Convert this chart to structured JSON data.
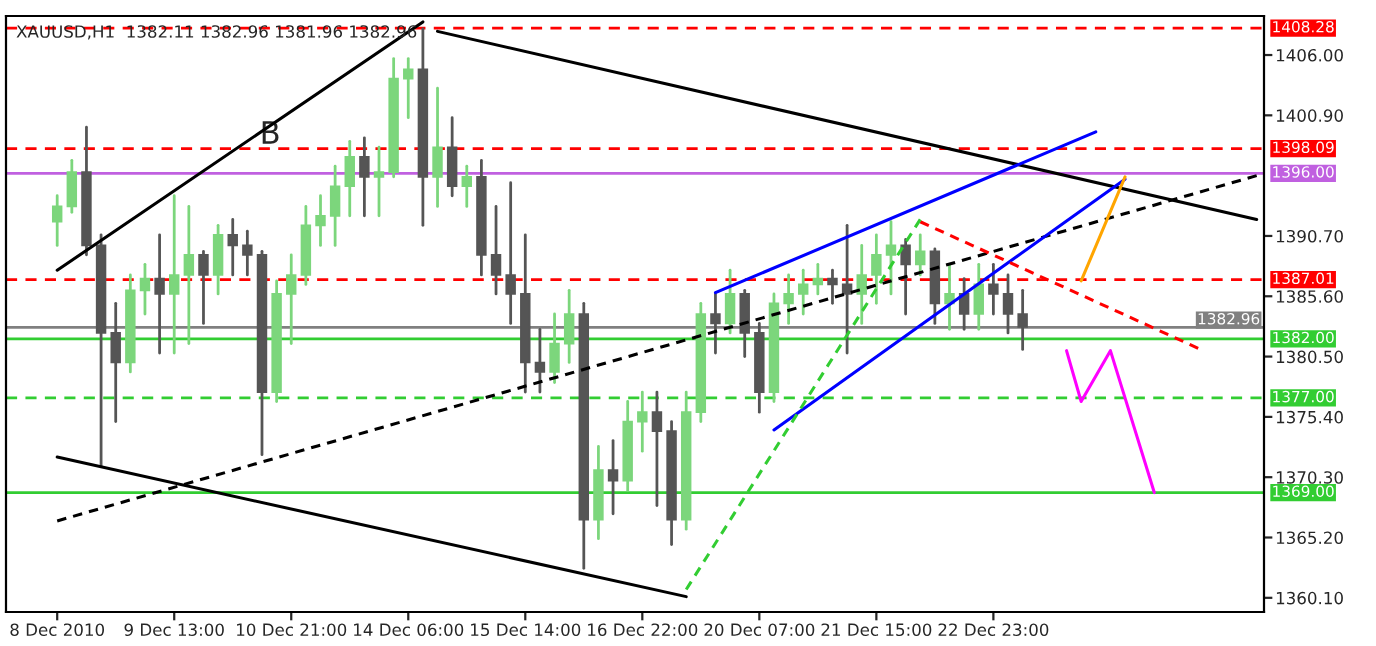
{
  "chart_data": {
    "type": "candlestick",
    "title": "XAUUSD,H1  1382.11 1382.96 1381.96 1382.96",
    "annotations": [
      "B"
    ],
    "categories": [
      "8 Dec 2010",
      null,
      null,
      null,
      null,
      null,
      null,
      null,
      "9 Dec 13:00",
      null,
      null,
      null,
      null,
      null,
      null,
      null,
      "10 Dec 21:00",
      null,
      null,
      null,
      null,
      null,
      null,
      null,
      "14 Dec 06:00",
      null,
      null,
      null,
      null,
      null,
      null,
      null,
      "15 Dec 14:00",
      null,
      null,
      null,
      null,
      null,
      null,
      null,
      "16 Dec 22:00",
      null,
      null,
      null,
      null,
      null,
      null,
      null,
      "20 Dec 07:00",
      null,
      null,
      null,
      null,
      null,
      null,
      null,
      "21 Dec 15:00",
      null,
      null,
      null,
      null,
      null,
      null,
      null,
      "22 Dec 23:00",
      null,
      null,
      null,
      null,
      null,
      null,
      null,
      null,
      null,
      null,
      null,
      null,
      null,
      null,
      null,
      null,
      null,
      null
    ],
    "ohlc": [
      [
        1391.9,
        1394.1,
        1389.9,
        1393.2
      ],
      [
        1393.2,
        1397.1,
        1392.7,
        1396.1
      ],
      [
        1396.1,
        1399.9,
        1389.1,
        1389.9
      ],
      [
        1389.9,
        1390.8,
        1371.2,
        1382.5
      ],
      [
        1382.5,
        1385.0,
        1375.0,
        1380.0
      ],
      [
        1380.0,
        1387.4,
        1379.2,
        1386.1
      ],
      [
        1386.1,
        1388.3,
        1384.1,
        1387.1
      ],
      [
        1387.1,
        1390.8,
        1380.8,
        1385.8
      ],
      [
        1385.8,
        1394.1,
        1380.8,
        1387.4
      ],
      [
        1387.4,
        1393.2,
        1381.6,
        1389.1
      ],
      [
        1389.1,
        1389.4,
        1383.3,
        1387.4
      ],
      [
        1387.4,
        1391.6,
        1385.8,
        1390.8
      ],
      [
        1390.8,
        1392.1,
        1387.4,
        1389.9
      ],
      [
        1389.9,
        1391.1,
        1387.4,
        1389.1
      ],
      [
        1389.1,
        1389.4,
        1372.2,
        1377.5
      ],
      [
        1377.5,
        1386.9,
        1376.7,
        1385.8
      ],
      [
        1385.8,
        1389.1,
        1381.6,
        1387.4
      ],
      [
        1387.4,
        1393.2,
        1386.6,
        1391.6
      ],
      [
        1391.6,
        1394.1,
        1389.9,
        1392.4
      ],
      [
        1392.4,
        1396.6,
        1389.9,
        1394.9
      ],
      [
        1394.9,
        1398.7,
        1392.4,
        1397.4
      ],
      [
        1397.4,
        1399.0,
        1392.4,
        1395.7
      ],
      [
        1395.7,
        1398.2,
        1392.4,
        1396.1
      ],
      [
        1396.1,
        1405.7,
        1395.7,
        1404.0
      ],
      [
        1404.0,
        1405.7,
        1400.7,
        1404.8
      ],
      [
        1404.8,
        1408.2,
        1391.6,
        1395.7
      ],
      [
        1395.7,
        1403.2,
        1393.2,
        1398.2
      ],
      [
        1398.2,
        1400.7,
        1394.1,
        1394.9
      ],
      [
        1394.9,
        1396.6,
        1393.2,
        1395.7
      ],
      [
        1395.7,
        1397.1,
        1387.4,
        1389.1
      ],
      [
        1389.1,
        1393.2,
        1385.8,
        1387.4
      ],
      [
        1387.4,
        1395.2,
        1383.3,
        1385.8
      ],
      [
        1385.8,
        1390.8,
        1377.5,
        1380.0
      ],
      [
        1380.0,
        1382.8,
        1377.5,
        1379.2
      ],
      [
        1379.2,
        1384.1,
        1378.3,
        1381.6
      ],
      [
        1381.6,
        1386.1,
        1380.0,
        1384.1
      ],
      [
        1384.1,
        1385.0,
        1362.6,
        1366.7
      ],
      [
        1366.7,
        1372.9,
        1365.1,
        1370.9
      ],
      [
        1370.9,
        1373.4,
        1367.2,
        1370.0
      ],
      [
        1370.0,
        1376.7,
        1369.2,
        1375.0
      ],
      [
        1375.0,
        1377.5,
        1372.5,
        1375.8
      ],
      [
        1375.8,
        1377.5,
        1367.9,
        1374.2
      ],
      [
        1374.2,
        1375.0,
        1364.6,
        1366.7
      ],
      [
        1366.7,
        1377.5,
        1365.9,
        1375.8
      ],
      [
        1375.8,
        1385.0,
        1375.0,
        1384.1
      ],
      [
        1384.1,
        1385.8,
        1380.8,
        1383.3
      ],
      [
        1383.3,
        1387.8,
        1382.5,
        1385.8
      ],
      [
        1385.8,
        1386.1,
        1380.5,
        1382.5
      ],
      [
        1382.5,
        1383.3,
        1375.8,
        1377.5
      ],
      [
        1377.5,
        1385.8,
        1376.7,
        1385.0
      ],
      [
        1385.0,
        1387.4,
        1383.3,
        1385.8
      ],
      [
        1385.8,
        1387.8,
        1384.1,
        1386.6
      ],
      [
        1386.6,
        1388.3,
        1385.8,
        1387.1
      ],
      [
        1387.1,
        1387.8,
        1385.0,
        1386.6
      ],
      [
        1386.6,
        1391.6,
        1380.8,
        1385.8
      ],
      [
        1385.8,
        1389.9,
        1383.3,
        1387.4
      ],
      [
        1387.4,
        1390.8,
        1385.0,
        1389.1
      ],
      [
        1389.1,
        1391.9,
        1385.8,
        1389.9
      ],
      [
        1389.9,
        1390.4,
        1384.1,
        1388.3
      ],
      [
        1388.3,
        1390.8,
        1387.4,
        1389.4
      ],
      [
        1389.4,
        1389.6,
        1383.3,
        1385.0
      ],
      [
        1385.0,
        1388.3,
        1382.8,
        1385.8
      ],
      [
        1385.8,
        1387.1,
        1382.8,
        1384.1
      ],
      [
        1384.1,
        1388.3,
        1382.8,
        1386.6
      ],
      [
        1386.6,
        1388.3,
        1384.1,
        1385.8
      ],
      [
        1385.8,
        1387.4,
        1382.5,
        1384.1
      ],
      [
        1384.1,
        1386.1,
        1381.1,
        1383.0
      ],
      null,
      null,
      null,
      null,
      null,
      null,
      null,
      null,
      null,
      null,
      null,
      null,
      null,
      null,
      null,
      null
    ],
    "series": [
      {
        "type": "line",
        "color": "#000000",
        "line_style": "solid",
        "values": [
          1387.8,
          null,
          null,
          null,
          null,
          null,
          null,
          null,
          null,
          null,
          null,
          null,
          null,
          null,
          null,
          null,
          null,
          null,
          null,
          null,
          null,
          null,
          null,
          null,
          null,
          1408.8,
          null,
          null,
          null,
          null,
          null,
          null,
          null,
          null,
          null,
          null,
          null,
          null,
          null,
          null,
          null,
          null,
          null,
          null,
          null,
          null,
          null,
          null,
          null,
          null,
          null,
          null,
          null,
          null,
          null,
          null,
          null,
          null,
          null,
          null,
          null,
          null,
          null,
          null,
          null,
          null,
          null,
          null,
          null,
          null,
          null,
          null,
          null,
          null,
          null,
          null,
          null,
          null,
          null,
          null,
          null,
          null,
          null
        ]
      },
      {
        "type": "line",
        "color": "#000000",
        "line_style": "solid",
        "values": [
          null,
          null,
          null,
          null,
          null,
          null,
          null,
          null,
          null,
          null,
          null,
          null,
          null,
          null,
          null,
          null,
          null,
          null,
          null,
          null,
          null,
          null,
          null,
          null,
          null,
          null,
          1408.0,
          null,
          null,
          null,
          null,
          null,
          null,
          null,
          null,
          null,
          null,
          null,
          null,
          null,
          null,
          null,
          null,
          null,
          null,
          null,
          null,
          null,
          null,
          null,
          null,
          null,
          null,
          null,
          null,
          null,
          null,
          null,
          null,
          null,
          null,
          null,
          null,
          null,
          null,
          null,
          null,
          null,
          null,
          null,
          null,
          null,
          null,
          null,
          null,
          null,
          null,
          null,
          null,
          null,
          null,
          null,
          1392.1
        ]
      },
      {
        "type": "line",
        "color": "#000000",
        "line_style": "solid",
        "values": [
          1372.0,
          null,
          null,
          null,
          null,
          null,
          null,
          null,
          null,
          null,
          null,
          null,
          null,
          null,
          null,
          null,
          null,
          null,
          null,
          null,
          null,
          null,
          null,
          null,
          null,
          null,
          null,
          null,
          null,
          null,
          null,
          null,
          null,
          null,
          null,
          null,
          null,
          null,
          null,
          null,
          null,
          null,
          null,
          1360.2,
          null,
          null,
          null,
          null,
          null,
          null,
          null,
          null,
          null,
          null,
          null,
          null,
          null,
          null,
          null,
          null,
          null,
          null,
          null,
          null,
          null,
          null,
          null,
          null,
          null,
          null,
          null,
          null,
          null,
          null,
          null,
          null,
          null,
          null,
          null,
          null,
          null,
          null,
          null
        ]
      },
      {
        "type": "line",
        "color": "#000000",
        "line_style": "dashed",
        "values": [
          1366.6,
          null,
          null,
          null,
          null,
          null,
          null,
          null,
          null,
          null,
          null,
          null,
          null,
          null,
          null,
          null,
          null,
          null,
          null,
          null,
          null,
          null,
          null,
          null,
          null,
          null,
          null,
          null,
          null,
          null,
          null,
          null,
          null,
          null,
          null,
          null,
          null,
          null,
          null,
          null,
          null,
          null,
          null,
          null,
          null,
          null,
          null,
          null,
          null,
          null,
          null,
          null,
          null,
          null,
          null,
          null,
          null,
          null,
          null,
          null,
          null,
          null,
          null,
          null,
          null,
          null,
          null,
          null,
          null,
          null,
          null,
          null,
          null,
          null,
          null,
          null,
          null,
          null,
          null,
          null,
          null,
          null,
          1395.8
        ]
      },
      {
        "type": "line",
        "color": "#0000ff",
        "line_style": "solid",
        "values": [
          null,
          null,
          null,
          null,
          null,
          null,
          null,
          null,
          null,
          null,
          null,
          null,
          null,
          null,
          null,
          null,
          null,
          null,
          null,
          null,
          null,
          null,
          null,
          null,
          null,
          null,
          null,
          null,
          null,
          null,
          null,
          null,
          null,
          null,
          null,
          null,
          null,
          null,
          null,
          null,
          null,
          null,
          null,
          null,
          null,
          1385.9,
          null,
          null,
          null,
          null,
          null,
          null,
          null,
          null,
          null,
          null,
          null,
          null,
          null,
          null,
          null,
          null,
          null,
          null,
          null,
          null,
          null,
          null,
          null,
          null,
          null,
          1399.5,
          null,
          null,
          null,
          null,
          null,
          null,
          null,
          null,
          null,
          null,
          null
        ]
      },
      {
        "type": "line",
        "color": "#0000ff",
        "line_style": "solid",
        "values": [
          null,
          null,
          null,
          null,
          null,
          null,
          null,
          null,
          null,
          null,
          null,
          null,
          null,
          null,
          null,
          null,
          null,
          null,
          null,
          null,
          null,
          null,
          null,
          null,
          null,
          null,
          null,
          null,
          null,
          null,
          null,
          null,
          null,
          null,
          null,
          null,
          null,
          null,
          null,
          null,
          null,
          null,
          null,
          null,
          null,
          null,
          null,
          null,
          null,
          1374.3,
          null,
          null,
          null,
          null,
          null,
          null,
          null,
          null,
          null,
          null,
          null,
          null,
          null,
          null,
          null,
          null,
          null,
          null,
          null,
          null,
          null,
          null,
          null,
          1395.5,
          null,
          null,
          null,
          null,
          null,
          null,
          null,
          null,
          null
        ]
      },
      {
        "type": "line",
        "color": "#ff0000",
        "line_style": "dashed",
        "values": [
          null,
          null,
          null,
          null,
          null,
          null,
          null,
          null,
          null,
          null,
          null,
          null,
          null,
          null,
          null,
          null,
          null,
          null,
          null,
          null,
          null,
          null,
          null,
          null,
          null,
          null,
          null,
          null,
          null,
          null,
          null,
          null,
          null,
          null,
          null,
          null,
          null,
          null,
          null,
          null,
          null,
          null,
          null,
          null,
          null,
          null,
          null,
          null,
          null,
          null,
          null,
          null,
          null,
          null,
          null,
          null,
          null,
          null,
          null,
          1391.9,
          null,
          null,
          null,
          null,
          null,
          null,
          null,
          null,
          null,
          null,
          null,
          null,
          null,
          null,
          null,
          null,
          null,
          null,
          1381.2,
          null,
          null,
          null,
          null
        ]
      },
      {
        "type": "line",
        "color": "#32cd32",
        "line_style": "dashed",
        "values": [
          null,
          null,
          null,
          null,
          null,
          null,
          null,
          null,
          null,
          null,
          null,
          null,
          null,
          null,
          null,
          null,
          null,
          null,
          null,
          null,
          null,
          null,
          null,
          null,
          null,
          null,
          null,
          null,
          null,
          null,
          null,
          null,
          null,
          null,
          null,
          null,
          null,
          null,
          null,
          null,
          null,
          null,
          null,
          1360.8,
          null,
          null,
          null,
          null,
          null,
          null,
          null,
          null,
          null,
          null,
          null,
          null,
          null,
          null,
          null,
          1392.1,
          null,
          null,
          null,
          null,
          null,
          null,
          null,
          null,
          null,
          null,
          null,
          null,
          null,
          null,
          null,
          null,
          null,
          null,
          null,
          null,
          null,
          null,
          null
        ]
      },
      {
        "type": "line",
        "color": "#ffa500",
        "line_style": "solid",
        "values": [
          null,
          null,
          null,
          null,
          null,
          null,
          null,
          null,
          null,
          null,
          null,
          null,
          null,
          null,
          null,
          null,
          null,
          null,
          null,
          null,
          null,
          null,
          null,
          null,
          null,
          null,
          null,
          null,
          null,
          null,
          null,
          null,
          null,
          null,
          null,
          null,
          null,
          null,
          null,
          null,
          null,
          null,
          null,
          null,
          null,
          null,
          null,
          null,
          null,
          null,
          null,
          null,
          null,
          null,
          null,
          null,
          null,
          null,
          null,
          null,
          null,
          null,
          null,
          null,
          null,
          null,
          null,
          null,
          null,
          null,
          1386.9,
          null,
          null,
          1395.7,
          null,
          null,
          null,
          null,
          null,
          null,
          null,
          null,
          null
        ]
      },
      {
        "type": "line",
        "color": "#ff00ff",
        "line_style": "solid",
        "values": [
          null,
          null,
          null,
          null,
          null,
          null,
          null,
          null,
          null,
          null,
          null,
          null,
          null,
          null,
          null,
          null,
          null,
          null,
          null,
          null,
          null,
          null,
          null,
          null,
          null,
          null,
          null,
          null,
          null,
          null,
          null,
          null,
          null,
          null,
          null,
          null,
          null,
          null,
          null,
          null,
          null,
          null,
          null,
          null,
          null,
          null,
          null,
          null,
          null,
          null,
          null,
          null,
          null,
          null,
          null,
          null,
          null,
          null,
          null,
          null,
          null,
          null,
          null,
          null,
          null,
          null,
          null,
          null,
          null,
          1381.0,
          1376.7,
          null,
          1381.0,
          null,
          null,
          1369.0,
          null,
          null,
          null,
          null,
          null,
          null,
          null
        ]
      }
    ],
    "ref_lines": [
      {
        "axis": "y",
        "value": 1408.28,
        "label": "1408.28",
        "color": "#ff0000",
        "line_style": "dashed"
      },
      {
        "axis": "y",
        "value": 1398.09,
        "label": "1398.09",
        "color": "#ff0000",
        "line_style": "dashed"
      },
      {
        "axis": "y",
        "value": 1396.0,
        "label": "1396.00",
        "color": "#c060e0",
        "line_style": "solid"
      },
      {
        "axis": "y",
        "value": 1387.01,
        "label": "1387.01",
        "color": "#ff0000",
        "line_style": "dashed"
      },
      {
        "axis": "y",
        "value": 1382.96,
        "label": "1382.96",
        "color": "#808080",
        "line_style": "solid"
      },
      {
        "axis": "y",
        "value": 1382.0,
        "label": "1382.00",
        "color": "#32cd32",
        "line_style": "solid"
      },
      {
        "axis": "y",
        "value": 1377.0,
        "label": "1377.00",
        "color": "#32cd32",
        "line_style": "dashed"
      },
      {
        "axis": "y",
        "value": 1369.0,
        "label": "1369.00",
        "color": "#32cd32",
        "line_style": "solid"
      }
    ],
    "ylim": [
      1358.9,
      1409.3
    ],
    "yticks": [
      {
        "value": 1360.1,
        "label": "1360.10"
      },
      {
        "value": 1365.2,
        "label": "1365.20"
      },
      {
        "value": 1370.3,
        "label": "1370.30"
      },
      {
        "value": 1375.4,
        "label": "1375.40"
      },
      {
        "value": 1380.5,
        "label": "1380.50"
      },
      {
        "value": 1385.6,
        "label": "1385.60"
      },
      {
        "value": 1390.7,
        "label": "1390.70"
      },
      {
        "value": 1400.9,
        "label": "1400.90"
      },
      {
        "value": 1406.0,
        "label": "1406.00"
      }
    ],
    "grid": false,
    "legend": false
  }
}
